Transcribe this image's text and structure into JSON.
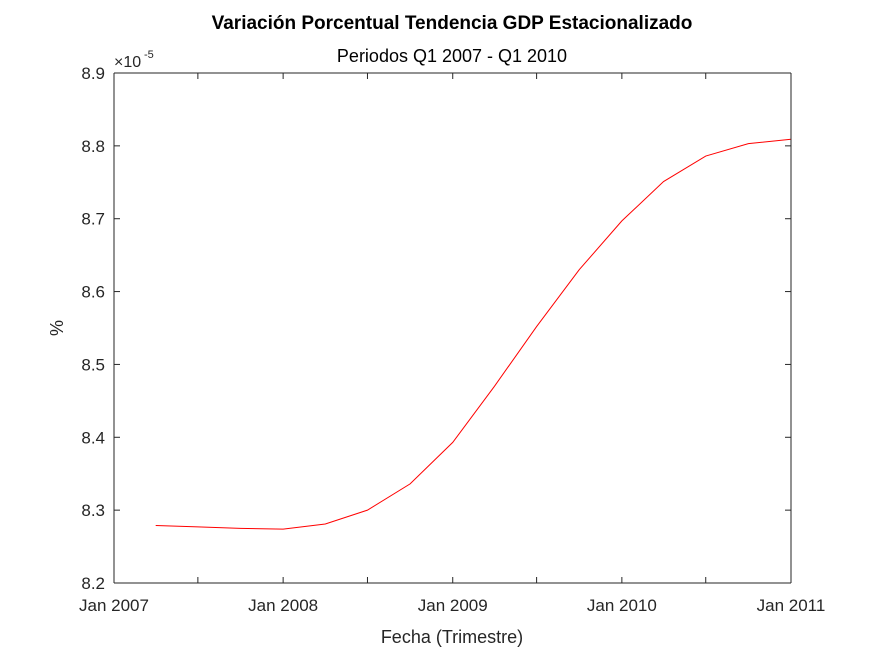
{
  "chart_data": {
    "type": "line",
    "title": "Variación Porcentual Tendencia GDP Estacionalizado",
    "subtitle": "Periodos Q1 2007 - Q1 2010",
    "xlabel": "Fecha (Trimestre)",
    "ylabel": "%",
    "y_exponent_label": "×10",
    "y_exponent_power": "-5",
    "xlim": [
      "2007-01-01",
      "2011-01-01"
    ],
    "ylim": [
      8.2,
      8.9
    ],
    "x_ticks": [
      "2007-01-01",
      "2007-07-01",
      "2008-01-01",
      "2008-07-01",
      "2009-01-01",
      "2009-07-01",
      "2010-01-01",
      "2010-07-01",
      "2011-01-01"
    ],
    "x_tick_labels": [
      "Jan 2007",
      "",
      "Jan 2008",
      "",
      "Jan 2009",
      "",
      "Jan 2010",
      "",
      "Jan 2011"
    ],
    "y_ticks": [
      8.2,
      8.3,
      8.4,
      8.5,
      8.6,
      8.7,
      8.8,
      8.9
    ],
    "y_tick_labels": [
      "8.2",
      "8.3",
      "8.4",
      "8.5",
      "8.6",
      "8.7",
      "8.8",
      "8.9"
    ],
    "grid": false,
    "series": [
      {
        "color": "#ff0000",
        "x": [
          "2007-04-01",
          "2007-07-01",
          "2007-10-01",
          "2008-01-01",
          "2008-04-01",
          "2008-07-01",
          "2008-10-01",
          "2009-01-01",
          "2009-04-01",
          "2009-07-01",
          "2009-10-01",
          "2010-01-01",
          "2010-04-01",
          "2010-07-01",
          "2010-10-01",
          "2011-01-01"
        ],
        "values": [
          8.279,
          8.277,
          8.275,
          8.274,
          8.281,
          8.3,
          8.336,
          8.393,
          8.47,
          8.552,
          8.63,
          8.697,
          8.751,
          8.786,
          8.803,
          8.809
        ]
      }
    ]
  }
}
